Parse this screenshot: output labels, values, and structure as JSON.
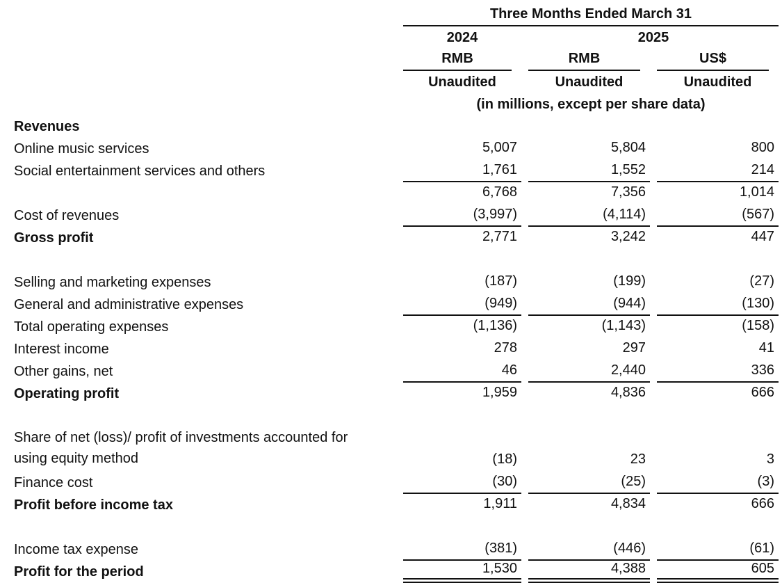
{
  "document": {
    "background_color": "#ffffff",
    "text_color": "#111111"
  },
  "table": {
    "header": {
      "period_title": "Three Months Ended March 31",
      "year_2024": "2024",
      "year_2025": "2025",
      "currency_labels": [
        "RMB",
        "RMB",
        "US$"
      ],
      "unaudited_labels": [
        "Unaudited",
        "Unaudited",
        "Unaudited"
      ],
      "units_note": "(in millions, except per share data)"
    },
    "columns": [
      "2024-rmb",
      "2025-rmb",
      "2025-usd"
    ],
    "rows": [
      {
        "label": "Revenues",
        "bold": true,
        "values": [
          "",
          "",
          ""
        ]
      },
      {
        "label": "Online music services",
        "values": [
          "5,007",
          "5,804",
          "800"
        ]
      },
      {
        "label": "Social entertainment services and others",
        "values": [
          "1,761",
          "1,552",
          "214"
        ],
        "rule": "single"
      },
      {
        "label": "",
        "values": [
          "6,768",
          "7,356",
          "1,014"
        ]
      },
      {
        "label": "Cost of revenues",
        "values": [
          "(3,997)",
          "(4,114)",
          "(567)"
        ],
        "rule": "single"
      },
      {
        "label": "Gross profit",
        "bold": true,
        "values": [
          "2,771",
          "3,242",
          "447"
        ]
      },
      {
        "type": "spacer"
      },
      {
        "label": "Selling and marketing expenses",
        "values": [
          "(187)",
          "(199)",
          "(27)"
        ]
      },
      {
        "label": "General and administrative expenses",
        "values": [
          "(949)",
          "(944)",
          "(130)"
        ],
        "rule": "single"
      },
      {
        "label": "Total operating expenses",
        "values": [
          "(1,136)",
          "(1,143)",
          "(158)"
        ]
      },
      {
        "label": "Interest income",
        "values": [
          "278",
          "297",
          "41"
        ]
      },
      {
        "label": "Other gains, net",
        "values": [
          "46",
          "2,440",
          "336"
        ],
        "rule": "single"
      },
      {
        "label": "Operating profit",
        "bold": true,
        "values": [
          "1,959",
          "4,836",
          "666"
        ]
      },
      {
        "type": "spacer"
      },
      {
        "label": "Share of net (loss)/ profit of investments accounted for using equity method",
        "twoline": true,
        "values": [
          "(18)",
          "23",
          "3"
        ]
      },
      {
        "label": "Finance cost",
        "values": [
          "(30)",
          "(25)",
          "(3)"
        ],
        "rule": "single"
      },
      {
        "label": "Profit before income tax",
        "bold": true,
        "values": [
          "1,911",
          "4,834",
          "666"
        ]
      },
      {
        "type": "spacer"
      },
      {
        "label": "Income tax expense",
        "values": [
          "(381)",
          "(446)",
          "(61)"
        ],
        "rule": "single"
      },
      {
        "label": "Profit for the period",
        "bold": true,
        "values": [
          "1,530",
          "4,388",
          "605"
        ],
        "rule": "double"
      }
    ]
  }
}
